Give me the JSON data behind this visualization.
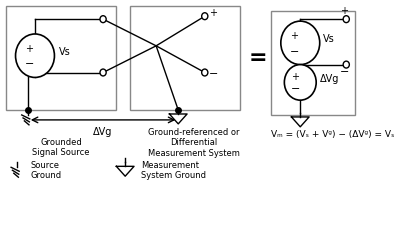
{
  "bg_color": "#ffffff",
  "line_color": "#000000",
  "box_color": "#888888",
  "fig_width": 4.07,
  "fig_height": 2.25,
  "dpi": 100,
  "label_grounded": "Grounded\nSignal Source",
  "label_differential": "Ground-referenced or\nDifferential\nMeasurement System",
  "label_source_ground": "Source\nGround",
  "label_meas_ground": "Measurement\nSystem Ground",
  "label_delta_vg": "ΔVg",
  "label_vs": "Vs",
  "label_dvg": "ΔVg",
  "formula": "Vₘ = (Vₛ + Vᵍ) − (ΔVᵍ) = Vₛ"
}
